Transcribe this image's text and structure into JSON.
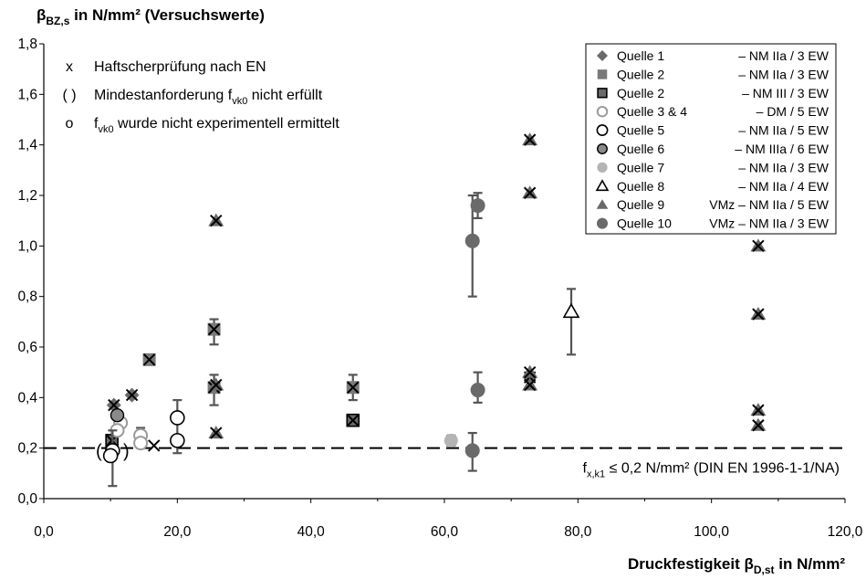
{
  "chart_data": {
    "type": "scatter",
    "ylabel": {
      "main": "β",
      "sub": "BZ,s",
      "rest": " in N/mm² (Versuchswerte)"
    },
    "xlabel": {
      "main": "Druckfestigkeit β",
      "sub": "D,st",
      "rest": " in N/mm²"
    },
    "xlim": [
      0,
      120
    ],
    "ylim": [
      0,
      1.8
    ],
    "xticks": [
      "0,0",
      "20,0",
      "40,0",
      "60,0",
      "80,0",
      "100,0",
      "120,0"
    ],
    "yticks": [
      "0,0",
      "0,2",
      "0,4",
      "0,6",
      "0,8",
      "1,0",
      "1,2",
      "1,4",
      "1,6",
      "1,8"
    ],
    "grid": false,
    "annotations": [
      {
        "symbol": "x",
        "pre": "Haftscherprüfung nach EN",
        "sub": "",
        "post": ""
      },
      {
        "symbol": "( )",
        "pre": "Mindestanforderung f",
        "sub": "vk0",
        "post": " nicht erfüllt"
      },
      {
        "symbol": "o",
        "pre": "f",
        "sub": "vk0",
        "post": " wurde nicht experimentell ermittelt"
      }
    ],
    "reference_line": {
      "y": 0.2,
      "pre": "f",
      "sub": "x,k1",
      "post": " ≤ 0,2 N/mm² (DIN EN 1996-1-1/NA)"
    },
    "legend_position": "top-right",
    "legend": [
      {
        "name": "Quelle 1",
        "note": "– NM IIa  / 3 EW",
        "marker": "diamond",
        "color": "#6a6a6a"
      },
      {
        "name": "Quelle 2",
        "note": "– NM IIa  / 3 EW",
        "marker": "square",
        "color": "#7a7a7a"
      },
      {
        "name": "Quelle 2",
        "note": "– NM III  / 3 EW",
        "marker": "square-dark",
        "color": "#6a6a6a"
      },
      {
        "name": "Quelle 3 & 4",
        "note": "– DM      / 5 EW",
        "marker": "circle-open",
        "color": "#9a9a9a"
      },
      {
        "name": "Quelle 5",
        "note": "– NM IIa  / 5 EW",
        "marker": "circle-open",
        "color": "#000000"
      },
      {
        "name": "Quelle 6",
        "note": "– NM IIIa / 6 EW",
        "marker": "circle-filled-outline",
        "color": "#8a8a8a"
      },
      {
        "name": "Quelle 7",
        "note": "– NM IIa  / 3 EW",
        "marker": "circle-filled",
        "color": "#b4b4b4"
      },
      {
        "name": "Quelle 8",
        "note": "– NM IIa  / 4 EW",
        "marker": "triangle-open",
        "color": "#000000"
      },
      {
        "name": "Quelle 9",
        "note": "VMz – NM IIa  / 5 EW",
        "marker": "triangle-filled",
        "color": "#6a6a6a"
      },
      {
        "name": "Quelle 10",
        "note": "VMz – NM IIa  / 3 EW",
        "marker": "circle-filled",
        "color": "#6a6a6a"
      }
    ],
    "series": [
      {
        "name": "Quelle 1",
        "marker": "diamond",
        "points": [
          {
            "x": 10.5,
            "y": 0.37,
            "cross": true
          },
          {
            "x": 13.2,
            "y": 0.41,
            "cross": true
          },
          {
            "x": 72.8,
            "y": 0.48,
            "cross": true
          }
        ]
      },
      {
        "name": "Quelle 2 NM IIa",
        "marker": "square",
        "points": [
          {
            "x": 15.8,
            "y": 0.55,
            "cross": true
          },
          {
            "x": 25.5,
            "y": 0.67,
            "cross": true,
            "err": [
              0.61,
              0.71
            ]
          },
          {
            "x": 25.5,
            "y": 0.44,
            "cross": true,
            "err": [
              0.37,
              0.49
            ]
          },
          {
            "x": 46.3,
            "y": 0.44,
            "cross": true,
            "err": [
              0.39,
              0.49
            ]
          }
        ]
      },
      {
        "name": "Quelle 2 NM III",
        "marker": "square-dark",
        "points": [
          {
            "x": 46.3,
            "y": 0.31,
            "cross": true
          },
          {
            "x": 10.2,
            "y": 0.23,
            "cross": true
          }
        ]
      },
      {
        "name": "Quelle 3 & 4",
        "marker": "circle-open-gray",
        "points": [
          {
            "x": 11.5,
            "y": 0.3
          },
          {
            "x": 11.0,
            "y": 0.27
          },
          {
            "x": 14.5,
            "y": 0.25,
            "err": [
              0.2,
              0.28
            ]
          },
          {
            "x": 14.5,
            "y": 0.22
          }
        ]
      },
      {
        "name": "Quelle 5",
        "marker": "circle-open",
        "points": [
          {
            "x": 20.0,
            "y": 0.32,
            "err": [
              0.18,
              0.39
            ]
          },
          {
            "x": 20.0,
            "y": 0.23
          },
          {
            "x": 10.3,
            "y": 0.19,
            "err": [
              0.05,
              0.27
            ],
            "paren": true
          },
          {
            "x": 10.0,
            "y": 0.17
          }
        ]
      },
      {
        "name": "Quelle 6",
        "marker": "circle-filled-outline",
        "points": [
          {
            "x": 11.0,
            "y": 0.33
          }
        ]
      },
      {
        "name": "Quelle 7",
        "marker": "circle-filled-light",
        "points": [
          {
            "x": 61.0,
            "y": 0.23,
            "err": [
              0.21,
              0.25
            ]
          }
        ]
      },
      {
        "name": "Quelle 8",
        "marker": "triangle-open",
        "points": [
          {
            "x": 79.0,
            "y": 0.74,
            "err": [
              0.57,
              0.83
            ]
          }
        ]
      },
      {
        "name": "Quelle 9",
        "marker": "triangle-filled",
        "points": [
          {
            "x": 25.8,
            "y": 1.1,
            "cross": true
          },
          {
            "x": 25.8,
            "y": 0.45,
            "cross": true
          },
          {
            "x": 25.8,
            "y": 0.26,
            "cross": true
          },
          {
            "x": 72.8,
            "y": 1.42,
            "cross": true
          },
          {
            "x": 72.8,
            "y": 1.21,
            "cross": true
          },
          {
            "x": 72.8,
            "y": 0.5,
            "cross": true
          },
          {
            "x": 72.8,
            "y": 0.45,
            "cross": true
          },
          {
            "x": 107.0,
            "y": 1.0,
            "cross": true
          },
          {
            "x": 107.0,
            "y": 0.73,
            "cross": true
          },
          {
            "x": 107.0,
            "y": 0.35,
            "cross": true
          },
          {
            "x": 107.0,
            "y": 0.29,
            "cross": true
          }
        ]
      },
      {
        "name": "Quelle 10",
        "marker": "circle-filled",
        "points": [
          {
            "x": 64.2,
            "y": 1.02,
            "err": [
              0.8,
              1.2
            ]
          },
          {
            "x": 65.0,
            "y": 1.16,
            "err": [
              1.11,
              1.21
            ]
          },
          {
            "x": 65.0,
            "y": 0.43,
            "err": [
              0.38,
              0.5
            ]
          },
          {
            "x": 64.2,
            "y": 0.19,
            "err": [
              0.11,
              0.26
            ]
          }
        ]
      },
      {
        "name": "Haftscherprüfung",
        "marker": "cross-only",
        "points": [
          {
            "x": 16.5,
            "y": 0.21
          }
        ]
      }
    ]
  }
}
